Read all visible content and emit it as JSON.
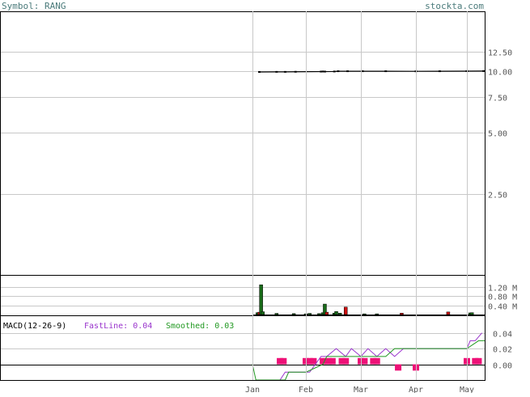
{
  "header": {
    "symbol_label": "Symbol: RANG",
    "site_label": "stockta.com"
  },
  "colors": {
    "frame": "#000000",
    "grid": "#c8c8c8",
    "header_text": "#4a7a7a",
    "up_bar": "#1a6b1a",
    "down_bar": "#cc1111",
    "fastline": "#9933cc",
    "smoothed": "#229922",
    "histogram": "#ee1177",
    "axis_text": "#555555"
  },
  "chart_data": [
    {
      "type": "line",
      "panel": "price",
      "scale": "log",
      "ylim": [
        1.0,
        15.0
      ],
      "y_ticks": [
        "12.50",
        "10.00",
        "7.50",
        "5.00",
        "2.50"
      ],
      "x_ticks": [
        "Jan",
        "Feb",
        "Mar",
        "Apr",
        "May"
      ],
      "series": [
        {
          "values": [
            {
              "d": "Jan 5",
              "v": 9.94
            },
            {
              "d": "Jan 15",
              "v": 9.95
            },
            {
              "d": "Jan 20",
              "v": 9.95
            },
            {
              "d": "Jan 26",
              "v": 9.96
            },
            {
              "d": "Feb 9",
              "v": 9.98
            },
            {
              "d": "Feb 10",
              "v": 9.99
            },
            {
              "d": "Feb 11",
              "v": 9.98
            },
            {
              "d": "Feb 16",
              "v": 9.99
            },
            {
              "d": "Feb 18",
              "v": 10.02
            },
            {
              "d": "Feb 23",
              "v": 10.02
            },
            {
              "d": "Mar 2",
              "v": 10.02
            },
            {
              "d": "Mar 15",
              "v": 10.02
            },
            {
              "d": "Apr 1",
              "v": 10.01
            },
            {
              "d": "Apr 15",
              "v": 10.02
            },
            {
              "d": "May 1",
              "v": 10.03
            },
            {
              "d": "May 11",
              "v": 10.04
            }
          ]
        }
      ]
    },
    {
      "type": "bar",
      "panel": "volume",
      "y_ticks": [
        "1.20 M",
        "0.80 M",
        "0.40 M"
      ],
      "ylim": [
        0,
        1.6
      ],
      "bars": [
        {
          "d": "Jan 4",
          "v": 0.08,
          "up": true
        },
        {
          "d": "Jan 5",
          "v": 0.1,
          "up": false
        },
        {
          "d": "Jan 6",
          "v": 1.28,
          "up": true
        },
        {
          "d": "Jan 7",
          "v": 0.12,
          "up": true
        },
        {
          "d": "Jan 15",
          "v": 0.05,
          "up": true
        },
        {
          "d": "Jan 25",
          "v": 0.04,
          "up": true
        },
        {
          "d": "Feb 1",
          "v": 0.03,
          "up": true
        },
        {
          "d": "Feb 3",
          "v": 0.05,
          "up": true
        },
        {
          "d": "Feb 8",
          "v": 0.04,
          "up": true
        },
        {
          "d": "Feb 10",
          "v": 0.08,
          "up": true
        },
        {
          "d": "Feb 11",
          "v": 0.45,
          "up": true
        },
        {
          "d": "Feb 12",
          "v": 0.1,
          "up": false
        },
        {
          "d": "Feb 16",
          "v": 0.06,
          "up": true
        },
        {
          "d": "Feb 17",
          "v": 0.13,
          "up": true
        },
        {
          "d": "Feb 19",
          "v": 0.06,
          "up": true
        },
        {
          "d": "Feb 22",
          "v": 0.32,
          "up": false
        },
        {
          "d": "Mar 3",
          "v": 0.03,
          "up": true
        },
        {
          "d": "Mar 10",
          "v": 0.03,
          "up": true
        },
        {
          "d": "Mar 24",
          "v": 0.06,
          "up": false
        },
        {
          "d": "Apr 20",
          "v": 0.11,
          "up": false
        },
        {
          "d": "May 3",
          "v": 0.07,
          "up": true
        },
        {
          "d": "May 4",
          "v": 0.08,
          "up": true
        }
      ]
    },
    {
      "type": "line",
      "panel": "macd",
      "title": "MACD(12-26-9)",
      "fastline_label": "FastLine: 0.04",
      "smoothed_label": "Smoothed: 0.03",
      "y_ticks": [
        "0.04",
        "0.02",
        "0.00"
      ],
      "ylim": [
        -0.02,
        0.05
      ],
      "series": [
        {
          "name": "FastLine",
          "values": [
            {
              "d": "Jan 17",
              "v": -0.02
            },
            {
              "d": "Jan 20",
              "v": -0.01
            },
            {
              "d": "Feb 1",
              "v": -0.01
            },
            {
              "d": "Feb 3",
              "v": -0.01
            },
            {
              "d": "Feb 9",
              "v": 0.01
            },
            {
              "d": "Feb 12",
              "v": 0.01
            },
            {
              "d": "Feb 17",
              "v": 0.02
            },
            {
              "d": "Feb 22",
              "v": 0.01
            },
            {
              "d": "Feb 25",
              "v": 0.02
            },
            {
              "d": "Mar 1",
              "v": 0.01
            },
            {
              "d": "Mar 5",
              "v": 0.02
            },
            {
              "d": "Mar 10",
              "v": 0.01
            },
            {
              "d": "Mar 15",
              "v": 0.02
            },
            {
              "d": "Mar 20",
              "v": 0.01
            },
            {
              "d": "Mar 25",
              "v": 0.02
            },
            {
              "d": "Apr 1",
              "v": 0.02
            },
            {
              "d": "Apr 20",
              "v": 0.02
            },
            {
              "d": "May 1",
              "v": 0.02
            },
            {
              "d": "May 3",
              "v": 0.03
            },
            {
              "d": "May 6",
              "v": 0.03
            },
            {
              "d": "May 10",
              "v": 0.04
            }
          ]
        },
        {
          "name": "Smoothed",
          "values": [
            {
              "d": "Jan 1",
              "v": 0.0
            },
            {
              "d": "Jan 3",
              "v": -0.02
            },
            {
              "d": "Jan 20",
              "v": -0.02
            },
            {
              "d": "Jan 22",
              "v": -0.01
            },
            {
              "d": "Feb 1",
              "v": -0.01
            },
            {
              "d": "Feb 10",
              "v": 0.0
            },
            {
              "d": "Feb 12",
              "v": 0.01
            },
            {
              "d": "Feb 25",
              "v": 0.01
            },
            {
              "d": "Mar 15",
              "v": 0.01
            },
            {
              "d": "Mar 20",
              "v": 0.02
            },
            {
              "d": "Apr 1",
              "v": 0.02
            },
            {
              "d": "May 1",
              "v": 0.02
            },
            {
              "d": "May 8",
              "v": 0.03
            },
            {
              "d": "May 12",
              "v": 0.03
            }
          ]
        }
      ],
      "histogram": [
        {
          "d": "Jan 17",
          "v": 0.008
        },
        {
          "d": "Jan 19",
          "v": 0.008
        },
        {
          "d": "Feb 1",
          "v": 0.008
        },
        {
          "d": "Feb 3",
          "v": 0.008
        },
        {
          "d": "Feb 5",
          "v": 0.008
        },
        {
          "d": "Feb 10",
          "v": 0.008
        },
        {
          "d": "Feb 13",
          "v": 0.008
        },
        {
          "d": "Feb 15",
          "v": 0.008
        },
        {
          "d": "Feb 20",
          "v": 0.008
        },
        {
          "d": "Feb 22",
          "v": 0.008
        },
        {
          "d": "Mar 1",
          "v": 0.008
        },
        {
          "d": "Mar 3",
          "v": 0.008
        },
        {
          "d": "Mar 8",
          "v": 0.008
        },
        {
          "d": "Mar 10",
          "v": 0.008
        },
        {
          "d": "Mar 22",
          "v": -0.008
        },
        {
          "d": "Apr 1",
          "v": -0.008
        },
        {
          "d": "May 1",
          "v": 0.008
        },
        {
          "d": "May 6",
          "v": 0.008
        },
        {
          "d": "May 8",
          "v": 0.008
        }
      ]
    }
  ]
}
